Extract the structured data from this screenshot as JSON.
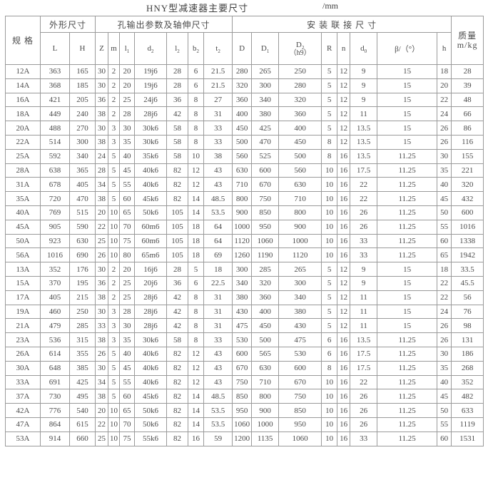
{
  "title": "HNY型减速器主要尺寸",
  "unit": "/mm",
  "colors": {
    "border": "#9a9a9a",
    "text": "#4a4a4a",
    "background": "#ffffff"
  },
  "table": {
    "header": {
      "spec": "规 格",
      "groups": [
        {
          "label": "外形尺寸",
          "colspan": 2
        },
        {
          "label": "孔输出参数及轴伸尺寸",
          "colspan": 7
        },
        {
          "label": "安 装 联 接 尺 寸",
          "colspan": 8
        }
      ],
      "mass": {
        "line1": "质量",
        "line2": "m/kg"
      },
      "columns": [
        {
          "base": "L"
        },
        {
          "base": "H"
        },
        {
          "base": "Z"
        },
        {
          "base": "m"
        },
        {
          "base": "l",
          "sub": "1"
        },
        {
          "base": "d",
          "sub": "2"
        },
        {
          "base": "l",
          "sub": "2"
        },
        {
          "base": "b",
          "sub": "2"
        },
        {
          "base": "t",
          "sub": "2"
        },
        {
          "base": "D"
        },
        {
          "base": "D",
          "sub": "1"
        },
        {
          "base": "D",
          "sub": "2",
          "note": "（h9）"
        },
        {
          "base": "R"
        },
        {
          "base": "n"
        },
        {
          "base": "d",
          "sub": "0"
        },
        {
          "base": "β/（°）"
        },
        {
          "base": "h"
        }
      ]
    },
    "rows": [
      [
        "12A",
        "363",
        "165",
        "30",
        "2",
        "20",
        "19j6",
        "28",
        "6",
        "21.5",
        "280",
        "265",
        "250",
        "5",
        "12",
        "9",
        "15",
        "18",
        "28"
      ],
      [
        "14A",
        "368",
        "185",
        "30",
        "2",
        "20",
        "19j6",
        "28",
        "6",
        "21.5",
        "320",
        "300",
        "280",
        "5",
        "12",
        "9",
        "15",
        "20",
        "39"
      ],
      [
        "16A",
        "421",
        "205",
        "36",
        "2",
        "25",
        "24j6",
        "36",
        "8",
        "27",
        "360",
        "340",
        "320",
        "5",
        "12",
        "9",
        "15",
        "22",
        "48"
      ],
      [
        "18A",
        "449",
        "240",
        "38",
        "2",
        "28",
        "28j6",
        "42",
        "8",
        "31",
        "400",
        "380",
        "360",
        "5",
        "12",
        "11",
        "15",
        "24",
        "66"
      ],
      [
        "20A",
        "488",
        "270",
        "30",
        "3",
        "30",
        "30k6",
        "58",
        "8",
        "33",
        "450",
        "425",
        "400",
        "5",
        "12",
        "13.5",
        "15",
        "26",
        "86"
      ],
      [
        "22A",
        "514",
        "300",
        "38",
        "3",
        "35",
        "30k6",
        "58",
        "8",
        "33",
        "500",
        "470",
        "450",
        "8",
        "12",
        "13.5",
        "15",
        "26",
        "116"
      ],
      [
        "25A",
        "592",
        "340",
        "24",
        "5",
        "40",
        "35k6",
        "58",
        "10",
        "38",
        "560",
        "525",
        "500",
        "8",
        "16",
        "13.5",
        "11.25",
        "30",
        "155"
      ],
      [
        "28A",
        "638",
        "365",
        "28",
        "5",
        "45",
        "40k6",
        "82",
        "12",
        "43",
        "630",
        "600",
        "560",
        "10",
        "16",
        "17.5",
        "11.25",
        "35",
        "221"
      ],
      [
        "31A",
        "678",
        "405",
        "34",
        "5",
        "55",
        "40k6",
        "82",
        "12",
        "43",
        "710",
        "670",
        "630",
        "10",
        "16",
        "22",
        "11.25",
        "40",
        "320"
      ],
      [
        "35A",
        "720",
        "470",
        "38",
        "5",
        "60",
        "45k6",
        "82",
        "14",
        "48.5",
        "800",
        "750",
        "710",
        "10",
        "16",
        "22",
        "11.25",
        "45",
        "432"
      ],
      [
        "40A",
        "769",
        "515",
        "20",
        "10",
        "65",
        "50k6",
        "105",
        "14",
        "53.5",
        "900",
        "850",
        "800",
        "10",
        "16",
        "26",
        "11.25",
        "50",
        "600"
      ],
      [
        "45A",
        "905",
        "590",
        "22",
        "10",
        "70",
        "60m6",
        "105",
        "18",
        "64",
        "1000",
        "950",
        "900",
        "10",
        "16",
        "26",
        "11.25",
        "55",
        "1016"
      ],
      [
        "50A",
        "923",
        "630",
        "25",
        "10",
        "75",
        "60m6",
        "105",
        "18",
        "64",
        "1120",
        "1060",
        "1000",
        "10",
        "16",
        "33",
        "11.25",
        "60",
        "1338"
      ],
      [
        "56A",
        "1016",
        "690",
        "26",
        "10",
        "80",
        "65m6",
        "105",
        "18",
        "69",
        "1260",
        "1190",
        "1120",
        "10",
        "16",
        "33",
        "11.25",
        "65",
        "1942"
      ],
      [
        "13A",
        "352",
        "176",
        "30",
        "2",
        "20",
        "16j6",
        "28",
        "5",
        "18",
        "300",
        "285",
        "265",
        "5",
        "12",
        "9",
        "15",
        "18",
        "33.5"
      ],
      [
        "15A",
        "370",
        "195",
        "36",
        "2",
        "25",
        "20j6",
        "36",
        "6",
        "22.5",
        "340",
        "320",
        "300",
        "5",
        "12",
        "9",
        "15",
        "22",
        "45.5"
      ],
      [
        "17A",
        "405",
        "215",
        "38",
        "2",
        "25",
        "28j6",
        "42",
        "8",
        "31",
        "380",
        "360",
        "340",
        "5",
        "12",
        "11",
        "15",
        "22",
        "56"
      ],
      [
        "19A",
        "460",
        "250",
        "30",
        "3",
        "28",
        "28j6",
        "42",
        "8",
        "31",
        "430",
        "400",
        "380",
        "5",
        "12",
        "11",
        "15",
        "24",
        "76"
      ],
      [
        "21A",
        "479",
        "285",
        "33",
        "3",
        "30",
        "28j6",
        "42",
        "8",
        "31",
        "475",
        "450",
        "430",
        "5",
        "12",
        "11",
        "15",
        "26",
        "98"
      ],
      [
        "23A",
        "536",
        "315",
        "38",
        "3",
        "35",
        "30k6",
        "58",
        "8",
        "33",
        "530",
        "500",
        "475",
        "6",
        "16",
        "13.5",
        "11.25",
        "26",
        "131"
      ],
      [
        "26A",
        "614",
        "355",
        "26",
        "5",
        "40",
        "40k6",
        "82",
        "12",
        "43",
        "600",
        "565",
        "530",
        "6",
        "16",
        "17.5",
        "11.25",
        "30",
        "186"
      ],
      [
        "30A",
        "648",
        "385",
        "30",
        "5",
        "45",
        "40k6",
        "82",
        "12",
        "43",
        "670",
        "630",
        "600",
        "8",
        "16",
        "17.5",
        "11.25",
        "35",
        "268"
      ],
      [
        "33A",
        "691",
        "425",
        "34",
        "5",
        "55",
        "40k6",
        "82",
        "12",
        "43",
        "750",
        "710",
        "670",
        "10",
        "16",
        "22",
        "11.25",
        "40",
        "352"
      ],
      [
        "37A",
        "730",
        "495",
        "38",
        "5",
        "60",
        "45k6",
        "82",
        "14",
        "48.5",
        "850",
        "800",
        "750",
        "10",
        "16",
        "26",
        "11.25",
        "45",
        "482"
      ],
      [
        "42A",
        "776",
        "540",
        "20",
        "10",
        "65",
        "50k6",
        "82",
        "14",
        "53.5",
        "950",
        "900",
        "850",
        "10",
        "16",
        "26",
        "11.25",
        "50",
        "633"
      ],
      [
        "47A",
        "864",
        "615",
        "22",
        "10",
        "70",
        "50k6",
        "82",
        "14",
        "53.5",
        "1060",
        "1000",
        "950",
        "10",
        "16",
        "26",
        "11.25",
        "55",
        "1119"
      ],
      [
        "53A",
        "914",
        "660",
        "25",
        "10",
        "75",
        "55k6",
        "82",
        "16",
        "59",
        "1200",
        "1135",
        "1060",
        "10",
        "16",
        "33",
        "11.25",
        "60",
        "1531"
      ]
    ]
  }
}
